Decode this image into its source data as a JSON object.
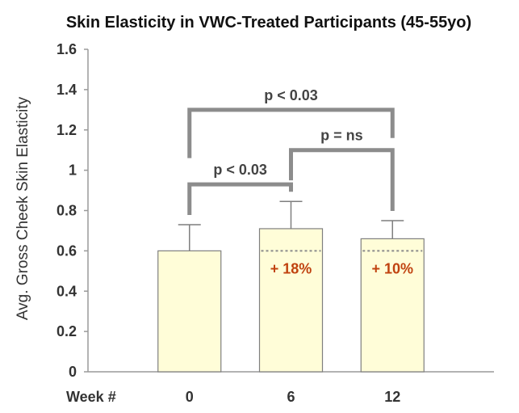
{
  "chart_data": {
    "type": "bar",
    "title": "Skin Elasticity in VWC-Treated Participants (45-55yo)",
    "ylabel": "Avg. Gross Cheek Skin Elasticity",
    "x_axis_label": "Week #",
    "categories": [
      "0",
      "6",
      "12"
    ],
    "values": [
      0.6,
      0.71,
      0.66
    ],
    "error_bars": [
      0.13,
      0.135,
      0.09
    ],
    "baseline_reference": 0.6,
    "ylim": [
      0,
      1.6
    ],
    "yticks": [
      "0",
      "0.2",
      "0.4",
      "0.6",
      "0.8",
      "1",
      "1.2",
      "1.4",
      "1.6"
    ],
    "grid": false,
    "legend": "none",
    "change_labels": [
      "",
      "+ 18%",
      "+ 10%"
    ],
    "significance": [
      {
        "from": 0,
        "to": 1,
        "label": "p < 0.03",
        "level": 0.93
      },
      {
        "from": 0,
        "to": 2,
        "label": "p < 0.03",
        "level": 1.3
      },
      {
        "from": 1,
        "to": 2,
        "label": "p = ns",
        "level": 1.1
      }
    ]
  },
  "colors": {
    "bar_fill": "#FFFDD8",
    "bar_stroke": "#7F7F7F",
    "bracket": "#8C8C8C",
    "change_label": "#C0420F",
    "axis": "#9A9A9A"
  }
}
